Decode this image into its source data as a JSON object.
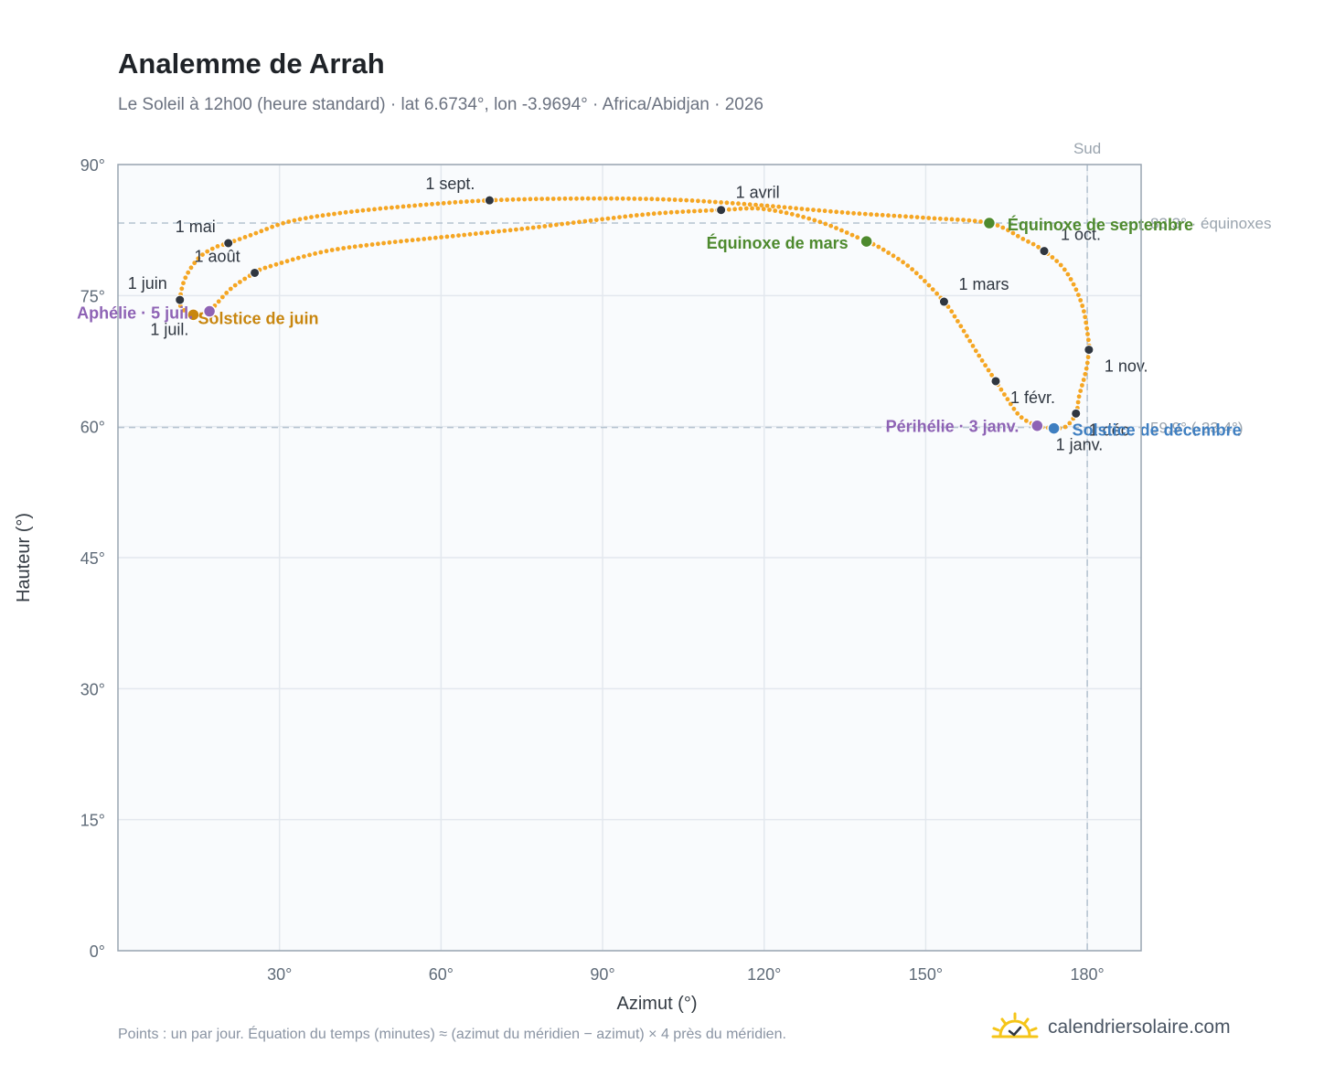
{
  "header": {
    "title": "Analemme de Arrah",
    "subtitle": "Le Soleil à 12h00 (heure standard) · lat 6.6734°, lon -3.9694° · Africa/Abidjan · 2026"
  },
  "footer": {
    "note": "Points : un par jour. Équation du temps (minutes) ≈ (azimut du méridien − azimut) × 4 près du méridien.",
    "brand": "calendriersolaire.com",
    "brand_icon": "sun-icon"
  },
  "colors": {
    "curve": "#f5a623",
    "month_dot": "#2f3640",
    "june_solstice": "#c8860f",
    "equinox": "#4e8a2e",
    "december_solstice": "#3f7fc1",
    "aphelion_perihelion": "#8e63b5",
    "plot_bg": "#f9fbfd",
    "grid": "#e3e8ee",
    "axis": "#9aa6b2"
  },
  "chart_data": {
    "type": "scatter",
    "xlabel": "Azimut (°)",
    "ylabel": "Hauteur (°)",
    "xlim": [
      0,
      190
    ],
    "ylim": [
      0,
      90
    ],
    "x_ticks": [
      30,
      60,
      90,
      120,
      150,
      180
    ],
    "x_tick_labels": [
      "30°",
      "60°",
      "90°",
      "120°",
      "150°",
      "180°"
    ],
    "y_ticks": [
      0,
      15,
      30,
      45,
      60,
      75,
      90
    ],
    "y_tick_labels": [
      "0°",
      "15°",
      "30°",
      "45°",
      "60°",
      "75°",
      "90°"
    ],
    "grid": true,
    "meridian": {
      "azimuth": 180,
      "label": "Sud"
    },
    "reference_lines": [
      {
        "altitude": 83.3,
        "label": "83.3° · équinoxes"
      },
      {
        "altitude": 59.9,
        "label": "59.9° (-23.4°)"
      }
    ],
    "analemma_path": [
      [
        173.8,
        59.8
      ],
      [
        170.7,
        60.1
      ],
      [
        167.5,
        61.2
      ],
      [
        164.8,
        63.5
      ],
      [
        163.0,
        65.2
      ],
      [
        159.6,
        68.4
      ],
      [
        156.0,
        72.0
      ],
      [
        153.4,
        74.3
      ],
      [
        147.5,
        78.0
      ],
      [
        142.0,
        80.3
      ],
      [
        139.0,
        81.2
      ],
      [
        130.0,
        83.5
      ],
      [
        120.0,
        84.9
      ],
      [
        112.0,
        84.8
      ],
      [
        100.0,
        84.4
      ],
      [
        88.0,
        83.6
      ],
      [
        76.0,
        82.7
      ],
      [
        62.0,
        81.8
      ],
      [
        48.0,
        80.9
      ],
      [
        38.0,
        80.0
      ],
      [
        28.0,
        78.3
      ],
      [
        25.4,
        77.6
      ],
      [
        21.0,
        75.8
      ],
      [
        17.0,
        73.3
      ],
      [
        14.0,
        72.8
      ],
      [
        12.0,
        73.5
      ],
      [
        11.5,
        74.5
      ],
      [
        12.5,
        77.0
      ],
      [
        15.0,
        79.3
      ],
      [
        18.0,
        80.5
      ],
      [
        20.5,
        81.0
      ],
      [
        25.0,
        82.0
      ],
      [
        32.0,
        83.5
      ],
      [
        42.0,
        84.5
      ],
      [
        55.0,
        85.3
      ],
      [
        69.0,
        85.9
      ],
      [
        85.0,
        86.1
      ],
      [
        102.0,
        86.0
      ],
      [
        118.0,
        85.4
      ],
      [
        135.0,
        84.5
      ],
      [
        150.0,
        83.9
      ],
      [
        161.8,
        83.3
      ],
      [
        168.0,
        81.5
      ],
      [
        172.0,
        80.1
      ],
      [
        176.0,
        77.8
      ],
      [
        179.0,
        74.0
      ],
      [
        180.2,
        70.0
      ],
      [
        180.3,
        68.8
      ],
      [
        179.8,
        66.5
      ],
      [
        178.5,
        63.5
      ],
      [
        177.9,
        61.5
      ],
      [
        176.0,
        60.0
      ],
      [
        173.8,
        59.8
      ]
    ],
    "month_markers": [
      {
        "label": "1 janv.",
        "azimuth": 173.8,
        "altitude": 59.8
      },
      {
        "label": "1 févr.",
        "azimuth": 163.0,
        "altitude": 65.2
      },
      {
        "label": "1 mars",
        "azimuth": 153.4,
        "altitude": 74.3
      },
      {
        "label": "1 avril",
        "azimuth": 112.0,
        "altitude": 84.8
      },
      {
        "label": "1 mai",
        "azimuth": 20.5,
        "altitude": 81.0
      },
      {
        "label": "1 juin",
        "azimuth": 11.5,
        "altitude": 74.5
      },
      {
        "label": "1 juil.",
        "azimuth": 14.0,
        "altitude": 72.8
      },
      {
        "label": "1 août",
        "azimuth": 25.4,
        "altitude": 77.6
      },
      {
        "label": "1 sept.",
        "azimuth": 69.0,
        "altitude": 85.9
      },
      {
        "label": "1 oct.",
        "azimuth": 172.0,
        "altitude": 80.1
      },
      {
        "label": "1 nov.",
        "azimuth": 180.3,
        "altitude": 68.8
      },
      {
        "label": "1 déc.",
        "azimuth": 177.9,
        "altitude": 61.5
      }
    ],
    "key_events": [
      {
        "label": "Solstice de juin",
        "azimuth": 14.0,
        "altitude": 72.8,
        "color_key": "june_solstice"
      },
      {
        "label": "Aphélie · 5 juil.",
        "azimuth": 17.0,
        "altitude": 73.2,
        "color_key": "aphelion_perihelion"
      },
      {
        "label": "Équinoxe de mars",
        "azimuth": 139.0,
        "altitude": 81.2,
        "color_key": "equinox"
      },
      {
        "label": "Équinoxe de septembre",
        "azimuth": 161.8,
        "altitude": 83.3,
        "color_key": "equinox"
      },
      {
        "label": "Périhélie · 3 janv.",
        "azimuth": 170.7,
        "altitude": 60.1,
        "color_key": "aphelion_perihelion"
      },
      {
        "label": "Solstice de décembre",
        "azimuth": 173.8,
        "altitude": 59.8,
        "color_key": "december_solstice"
      }
    ]
  }
}
